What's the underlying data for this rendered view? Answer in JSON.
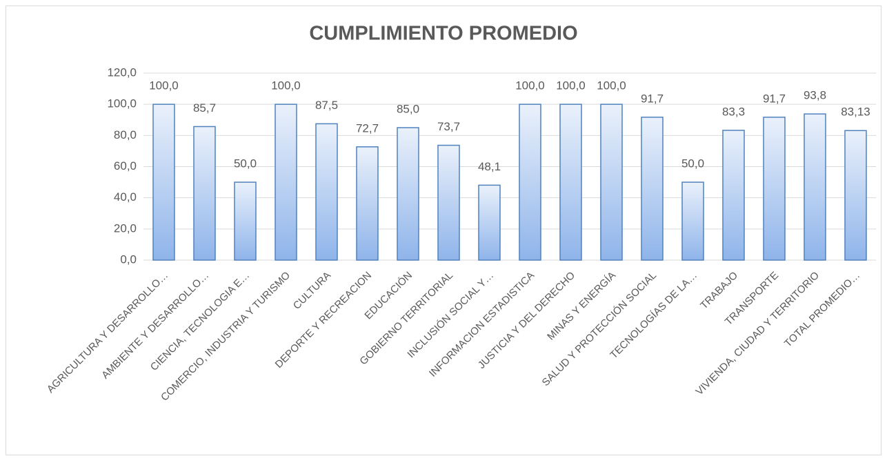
{
  "chart_data": {
    "type": "bar",
    "title": "CUMPLIMIENTO PROMEDIO",
    "categories": [
      "AGRICULTURA Y DESARROLLO…",
      "AMBIENTE Y DESARROLLO…",
      "CIENCIA, TECNOLOGIA E…",
      "COMERCIO, INDUSTRIA Y TURISMO",
      "CULTURA",
      "DEPORTE Y RECREACION",
      "EDUCACIÓN",
      "GOBIERNO TERRITORIAL",
      "INCLUSIÓN SOCIAL Y…",
      "INFORMACION ESTADISTICA",
      "JUSTICIA Y DEL DERECHO",
      "MINAS Y ENERGÍA",
      "SALUD Y PROTECCIÓN SOCIAL",
      "TECNOLOGÍAS DE LA…",
      "TRABAJO",
      "TRANSPORTE",
      "VIVIENDA, CIUDAD Y TERRITORIO",
      "TOTAL PROMEDIO…"
    ],
    "values": [
      100,
      85.7,
      50,
      100,
      87.5,
      72.7,
      85,
      73.7,
      48.1,
      100,
      100,
      100,
      91.7,
      50,
      83.3,
      91.7,
      93.8,
      83.13
    ],
    "value_labels": [
      "100,0",
      "85,7",
      "50,0",
      "100,0",
      "87,5",
      "72,7",
      "85,0",
      "73,7",
      "48,1",
      "100,0",
      "100,0",
      "100,0",
      "91,7",
      "50,0",
      "83,3",
      "91,7",
      "93,8",
      "83,13"
    ],
    "color": "#4f81bd",
    "ylim": [
      0,
      120
    ],
    "yticks": [
      {
        "value": 0,
        "label": "0,0"
      },
      {
        "value": 20,
        "label": "20,0"
      },
      {
        "value": 40,
        "label": "40,0"
      },
      {
        "value": 60,
        "label": "60,0"
      },
      {
        "value": 80,
        "label": "80,0"
      },
      {
        "value": 100,
        "label": "100,0"
      },
      {
        "value": 120,
        "label": "120,0"
      }
    ],
    "grid": true
  }
}
